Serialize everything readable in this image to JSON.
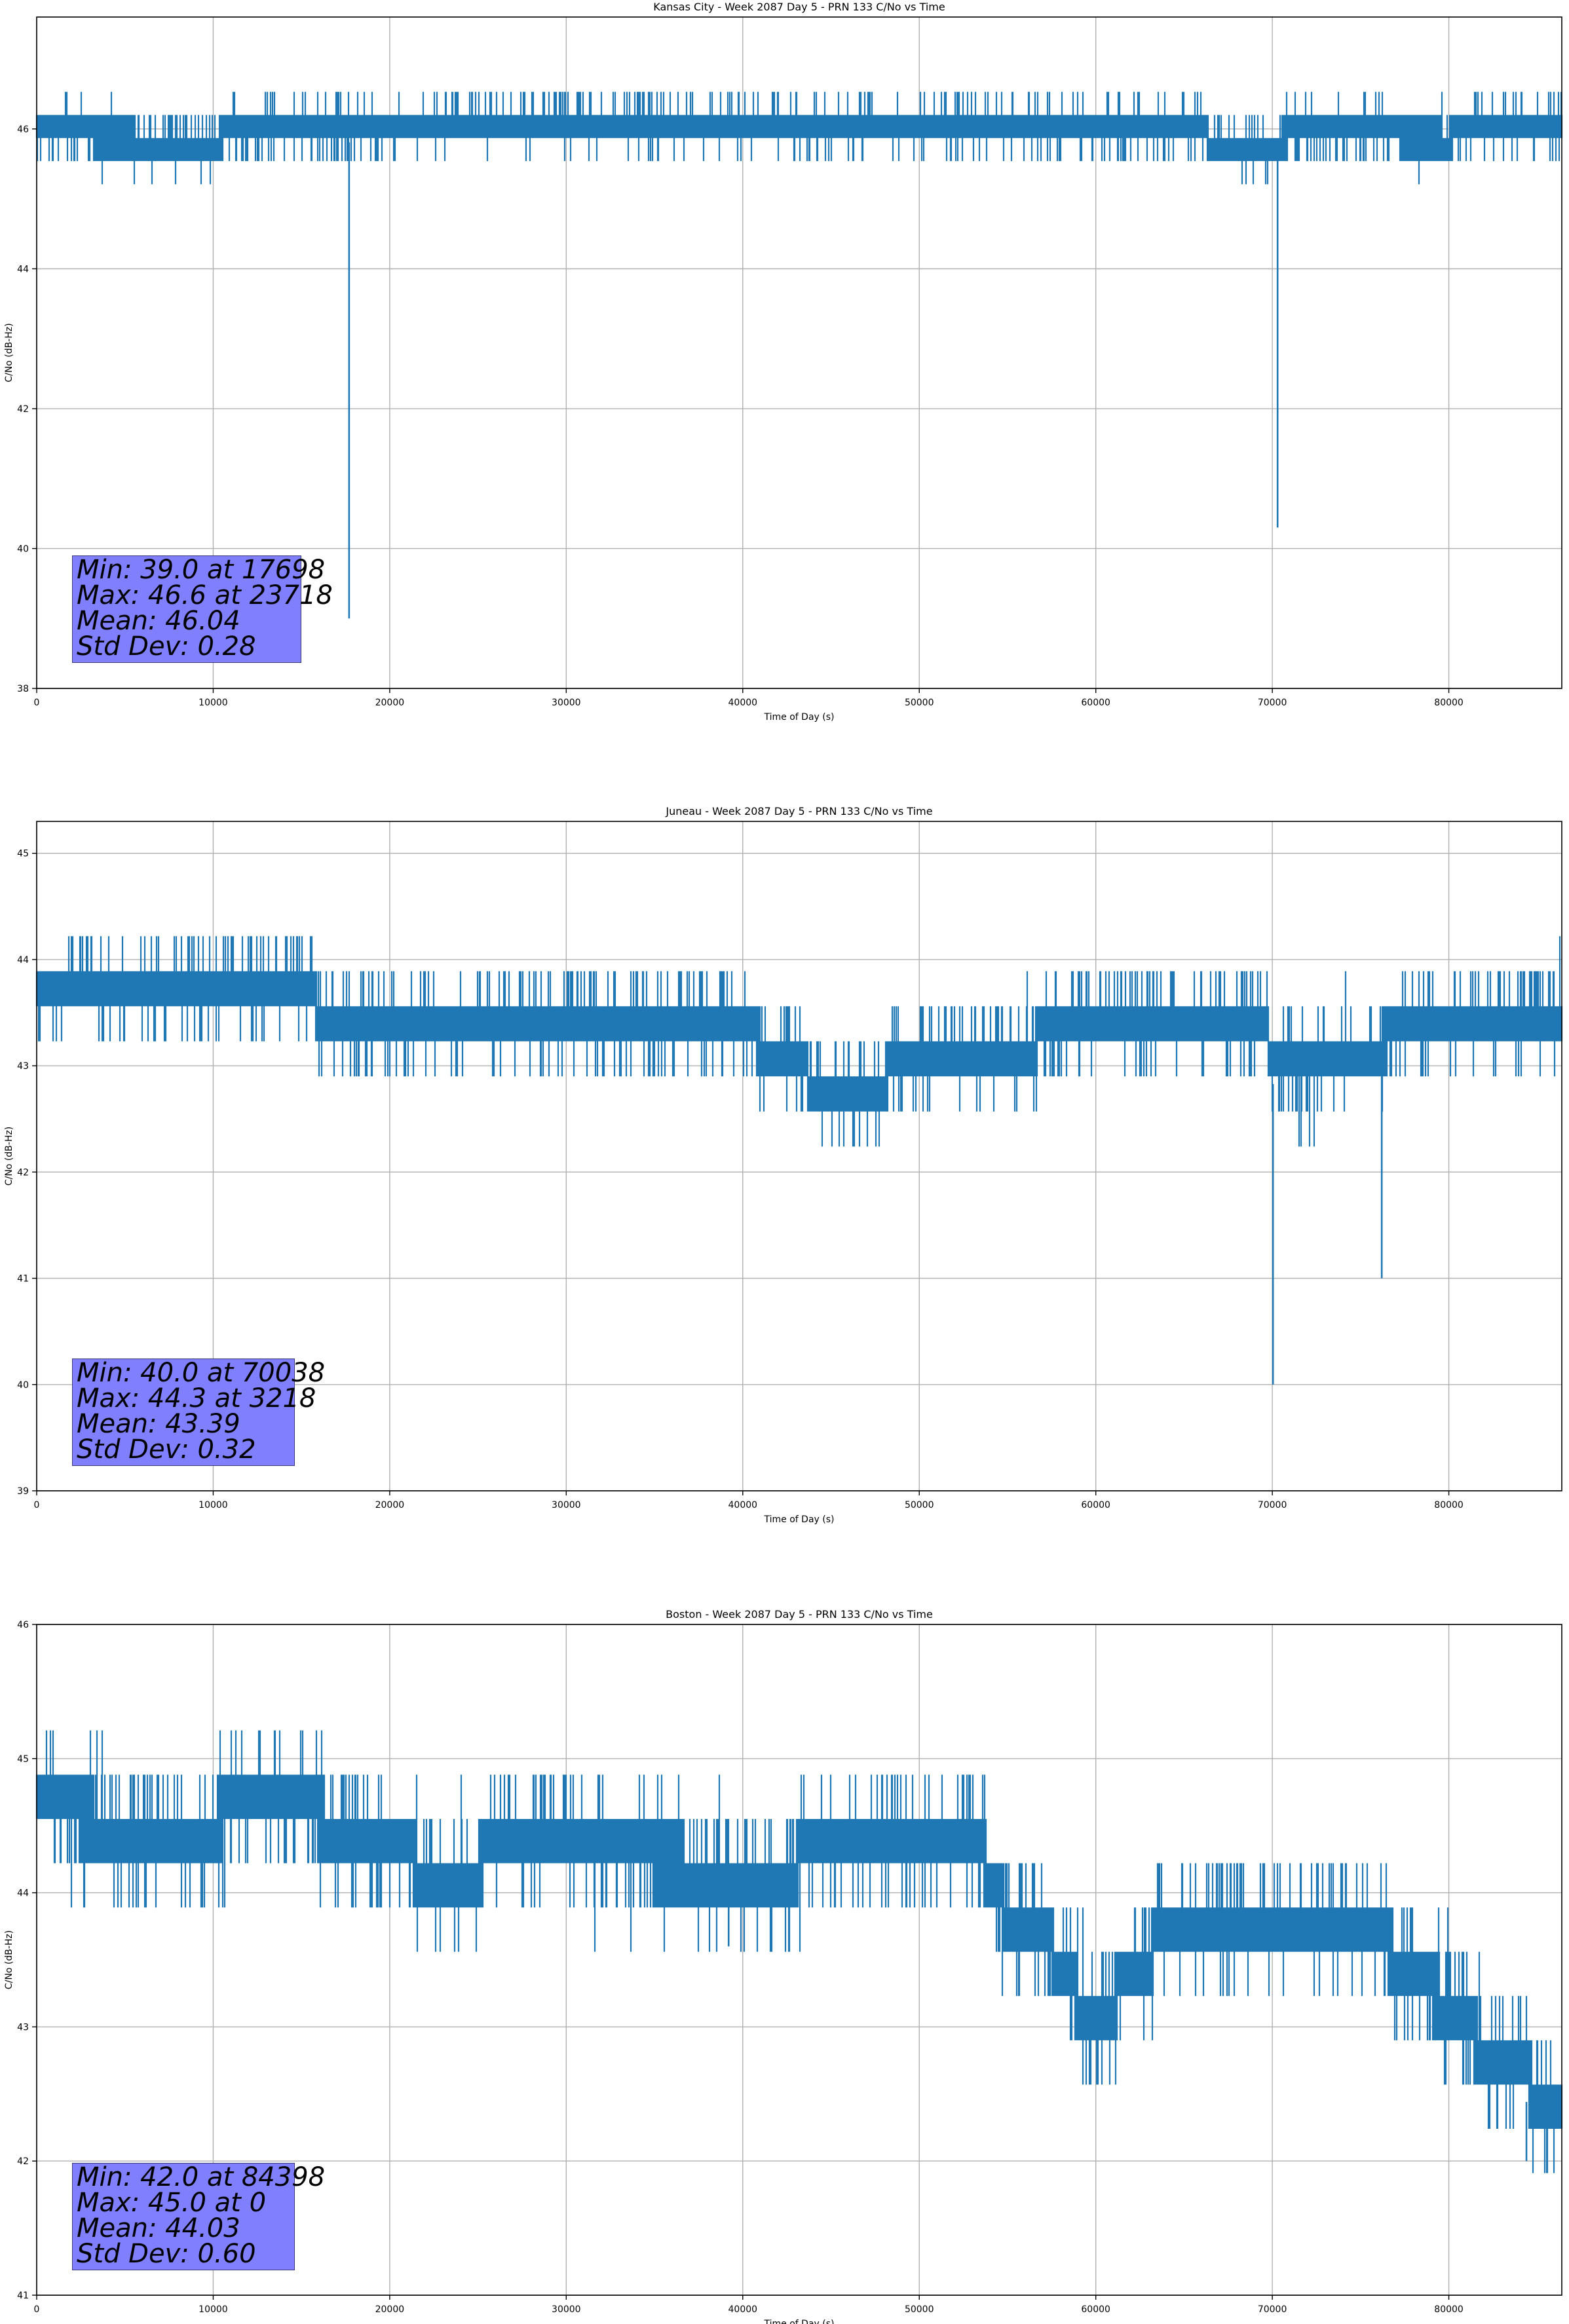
{
  "colors": {
    "series": "#1f77b4",
    "grid": "#b0b0b0",
    "stats_box": "#8080ff",
    "axis": "#000000"
  },
  "chart_data": [
    {
      "type": "line",
      "title": "Kansas City - Week 2087 Day 5 - PRN 133 C/No vs Time",
      "xlabel": "Time of Day (s)",
      "ylabel": "C/No (dB-Hz)",
      "xlim": [
        0,
        86400
      ],
      "ylim": [
        38,
        47.6
      ],
      "xticks": [
        0,
        10000,
        20000,
        30000,
        40000,
        50000,
        60000,
        70000,
        80000
      ],
      "yticks": [
        38,
        40,
        42,
        44,
        46
      ],
      "grid": true,
      "series": [
        {
          "name": "PRN 133 C/No",
          "band_profile": [
            [
              0,
              45.9
            ],
            [
              2000,
              45.9
            ],
            [
              10000,
              45.8
            ],
            [
              11000,
              45.95
            ],
            [
              20000,
              46.0
            ],
            [
              23500,
              46.1
            ],
            [
              30000,
              46.15
            ],
            [
              32000,
              46.1
            ],
            [
              36000,
              46.1
            ],
            [
              40000,
              46.05
            ],
            [
              50000,
              46.05
            ],
            [
              60000,
              46.05
            ],
            [
              66000,
              46.0
            ],
            [
              66500,
              45.8
            ],
            [
              70000,
              45.8
            ],
            [
              71000,
              45.9
            ],
            [
              73000,
              46.0
            ],
            [
              76000,
              45.9
            ],
            [
              80000,
              45.85
            ],
            [
              81000,
              46.05
            ],
            [
              86400,
              46.05
            ]
          ],
          "band_halfwidth": 0.18,
          "spike_amplitude": 0.35,
          "dips": [
            [
              17698,
              39.0
            ],
            [
              70300,
              40.3
            ]
          ]
        }
      ],
      "stats": {
        "min": "Min: 39.0 at 17698",
        "max": "Max: 46.6 at 23718",
        "mean": "Mean: 46.04",
        "std": "Std Dev: 0.28"
      }
    },
    {
      "type": "line",
      "title": "Juneau - Week 2087 Day 5 - PRN 133 C/No vs Time",
      "xlabel": "Time of Day (s)",
      "ylabel": "C/No (dB-Hz)",
      "xlim": [
        0,
        86400
      ],
      "ylim": [
        39,
        45.3
      ],
      "xticks": [
        0,
        10000,
        20000,
        30000,
        40000,
        50000,
        60000,
        70000,
        80000
      ],
      "yticks": [
        39,
        40,
        41,
        42,
        43,
        44,
        45
      ],
      "grid": true,
      "series": [
        {
          "name": "PRN 133 C/No",
          "band_profile": [
            [
              0,
              43.8
            ],
            [
              15600,
              43.8
            ],
            [
              16000,
              43.45
            ],
            [
              40000,
              43.45
            ],
            [
              41000,
              43.2
            ],
            [
              43000,
              43.1
            ],
            [
              44000,
              42.8
            ],
            [
              48000,
              42.8
            ],
            [
              48500,
              43.1
            ],
            [
              55000,
              43.1
            ],
            [
              57500,
              43.3
            ],
            [
              58000,
              43.45
            ],
            [
              69500,
              43.45
            ],
            [
              70000,
              43.0
            ],
            [
              72000,
              42.9
            ],
            [
              74000,
              43.2
            ],
            [
              76000,
              43.2
            ],
            [
              77500,
              43.3
            ],
            [
              78000,
              43.45
            ],
            [
              86400,
              43.5
            ]
          ],
          "band_halfwidth": 0.17,
          "spike_amplitude": 0.4,
          "dips": [
            [
              70038,
              40.0
            ],
            [
              76200,
              41.0
            ]
          ]
        }
      ],
      "stats": {
        "min": "Min: 40.0 at 70038",
        "max": "Max: 44.3 at 3218",
        "mean": "Mean: 43.39",
        "std": "Std Dev: 0.32"
      }
    },
    {
      "type": "line",
      "title": "Boston - Week 2087 Day 5 - PRN 133 C/No vs Time",
      "xlabel": "Time of Day (s)",
      "ylabel": "C/No (dB-Hz)",
      "xlim": [
        0,
        86400
      ],
      "ylim": [
        41,
        46
      ],
      "xticks": [
        0,
        10000,
        20000,
        30000,
        40000,
        50000,
        60000,
        70000,
        80000
      ],
      "yticks": [
        41,
        42,
        43,
        44,
        45,
        46
      ],
      "grid": true,
      "series": [
        {
          "name": "PRN 133 C/No",
          "band_profile": [
            [
              0,
              44.8
            ],
            [
              1600,
              44.6
            ],
            [
              5000,
              44.45
            ],
            [
              10000,
              44.5
            ],
            [
              11000,
              44.65
            ],
            [
              14000,
              44.7
            ],
            [
              17500,
              44.45
            ],
            [
              20000,
              44.4
            ],
            [
              22000,
              44.15
            ],
            [
              25000,
              44.2
            ],
            [
              26000,
              44.45
            ],
            [
              30000,
              44.45
            ],
            [
              31000,
              44.3
            ],
            [
              40000,
              44.15
            ],
            [
              41000,
              44.2
            ],
            [
              43000,
              44.2
            ],
            [
              44000,
              44.45
            ],
            [
              51000,
              44.45
            ],
            [
              53000,
              44.4
            ],
            [
              54000,
              44.15
            ],
            [
              55000,
              43.8
            ],
            [
              57000,
              43.7
            ],
            [
              58000,
              43.45
            ],
            [
              59000,
              43.2
            ],
            [
              60000,
              43.1
            ],
            [
              61000,
              43.2
            ],
            [
              62000,
              43.4
            ],
            [
              63000,
              43.5
            ],
            [
              64000,
              43.8
            ],
            [
              69000,
              43.8
            ],
            [
              73000,
              43.8
            ],
            [
              76000,
              43.7
            ],
            [
              77000,
              43.5
            ],
            [
              78000,
              43.4
            ],
            [
              80000,
              43.15
            ],
            [
              81000,
              43.0
            ],
            [
              82000,
              42.8
            ],
            [
              84000,
              42.7
            ],
            [
              85000,
              42.5
            ],
            [
              86400,
              42.45
            ]
          ],
          "band_halfwidth": 0.18,
          "spike_amplitude": 0.4,
          "dips": [
            [
              84398,
              42.0
            ],
            [
              39200,
              43.6
            ]
          ]
        }
      ],
      "stats": {
        "min": "Min: 42.0 at 84398",
        "max": "Max: 45.0 at 0",
        "mean": "Mean: 44.03",
        "std": "Std Dev: 0.60"
      }
    }
  ]
}
